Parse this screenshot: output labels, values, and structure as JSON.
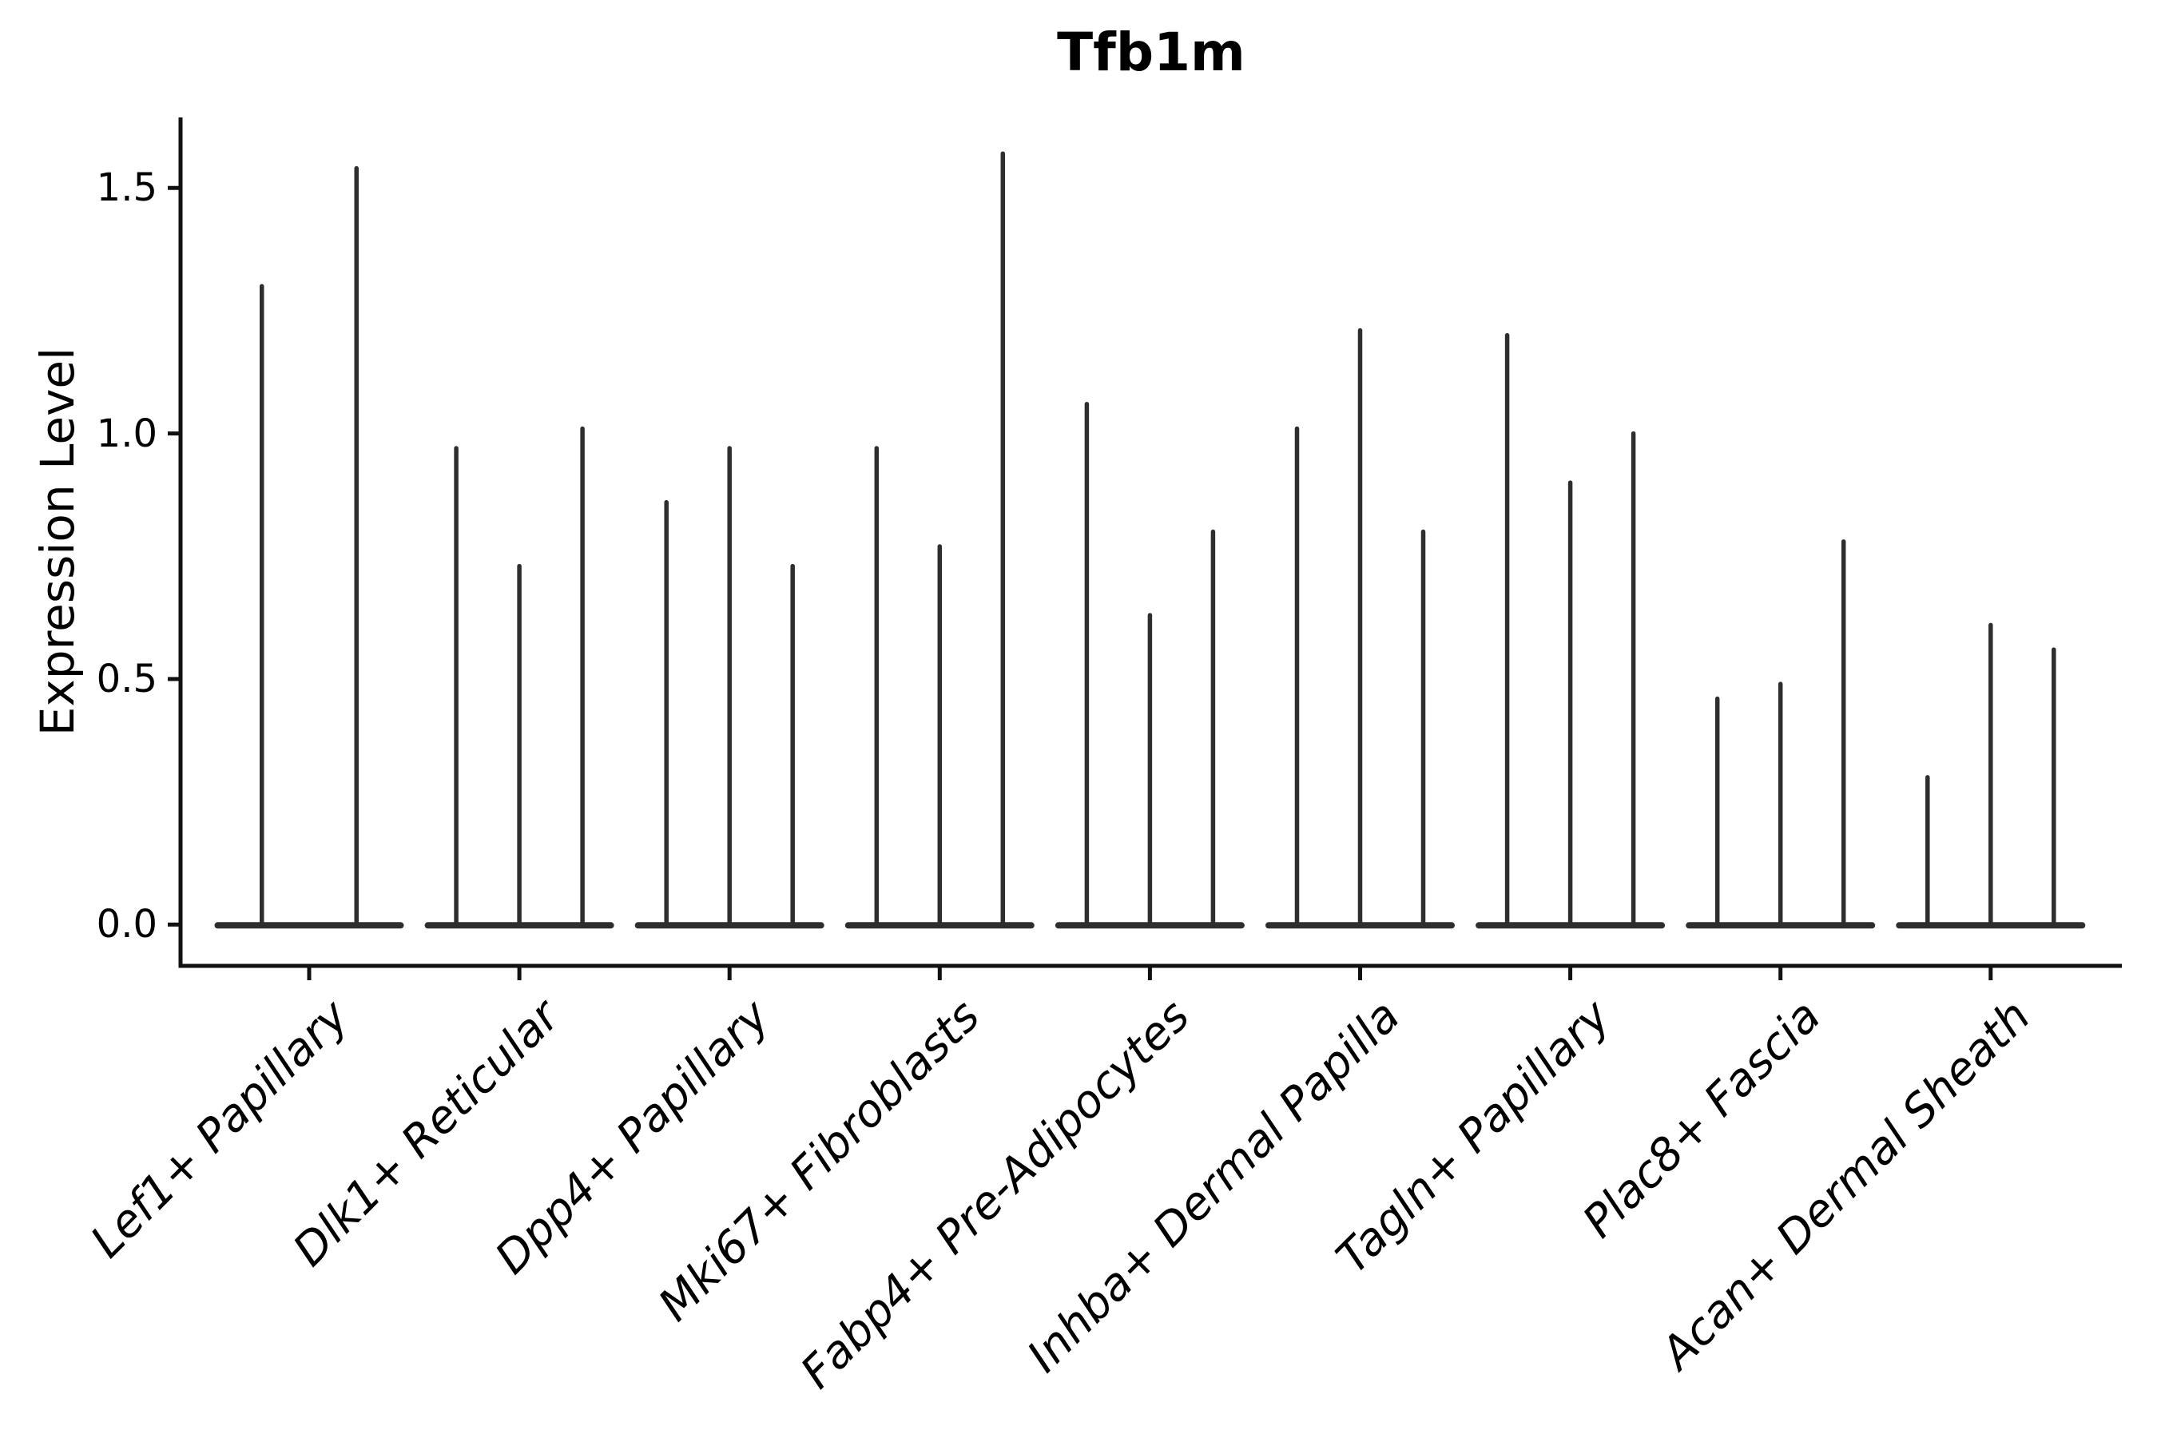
{
  "chart_data": {
    "type": "violin",
    "title": "Tfb1m",
    "ylabel": "Expression Level",
    "xlabel": "",
    "grid": false,
    "legend_position": "none",
    "y_tick_labels": [
      "0.0",
      "0.5",
      "1.0",
      "1.5"
    ],
    "y_tick_values": [
      0.0,
      0.5,
      1.0,
      1.5
    ],
    "ylim": [
      -0.085,
      1.645
    ],
    "categories": [
      "Lef1+ Papillary",
      "Dlk1+ Reticular",
      "Dpp4+ Papillary",
      "Mki67+ Fibroblasts",
      "Fabp4+ Pre-Adipocytes",
      "Inhba+ Dermal Papilla",
      "Tagln+ Papillary",
      "Plac8+ Fascia",
      "Acan+ Dermal Sheath"
    ],
    "violin_shape_note": "density mass concentrated at 0 (flat wide base), thin vertical spike up to max expression",
    "violin_max_values": [
      [
        1.3,
        1.54
      ],
      [
        0.97,
        0.73,
        1.01
      ],
      [
        0.86,
        0.97,
        0.73
      ],
      [
        0.97,
        0.77,
        1.57
      ],
      [
        1.06,
        0.63,
        0.8
      ],
      [
        1.01,
        1.21,
        0.8
      ],
      [
        1.2,
        0.9,
        1.0
      ],
      [
        0.46,
        0.49,
        0.78
      ],
      [
        0.3,
        0.61,
        0.56
      ]
    ],
    "colors": {
      "background": "#ffffff",
      "violin": "#2e2e2e",
      "axis": "#111111",
      "text": "#000000"
    }
  }
}
